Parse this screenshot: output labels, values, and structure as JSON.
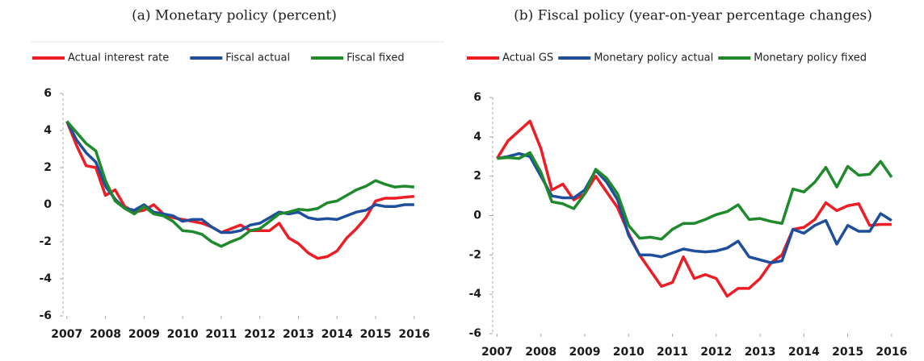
{
  "chart_data": [
    {
      "type": "line",
      "title": "(a) Monetary policy (percent)",
      "x": [
        2007,
        2007.25,
        2007.5,
        2007.75,
        2008,
        2008.25,
        2008.5,
        2008.75,
        2009,
        2009.25,
        2009.5,
        2009.75,
        2010,
        2010.25,
        2010.5,
        2010.75,
        2011,
        2011.25,
        2011.5,
        2011.75,
        2012,
        2012.25,
        2012.5,
        2012.75,
        2013,
        2013.25,
        2013.5,
        2013.75,
        2014,
        2014.25,
        2014.5,
        2014.75,
        2015,
        2015.25,
        2015.5,
        2015.75,
        2016
      ],
      "series": [
        {
          "name": "Actual interest rate",
          "color": "#ee1c25",
          "values": [
            4.5,
            3.2,
            2.1,
            2.0,
            0.5,
            0.8,
            -0.1,
            -0.4,
            -0.3,
            0.0,
            -0.5,
            -0.7,
            -0.8,
            -0.9,
            -1.0,
            -1.2,
            -1.5,
            -1.3,
            -1.1,
            -1.4,
            -1.4,
            -1.4,
            -1.0,
            -1.8,
            -2.1,
            -2.6,
            -2.9,
            -2.8,
            -2.5,
            -1.8,
            -1.3,
            -0.7,
            0.2,
            0.35,
            0.35,
            0.4,
            0.45
          ]
        },
        {
          "name": "Fiscal actual",
          "color": "#1f4e9c",
          "values": [
            4.5,
            3.5,
            2.8,
            2.3,
            1.0,
            0.3,
            -0.2,
            -0.3,
            0.0,
            -0.4,
            -0.5,
            -0.6,
            -0.9,
            -0.8,
            -0.8,
            -1.2,
            -1.5,
            -1.5,
            -1.4,
            -1.1,
            -1.0,
            -0.7,
            -0.4,
            -0.5,
            -0.4,
            -0.7,
            -0.8,
            -0.75,
            -0.8,
            -0.6,
            -0.4,
            -0.3,
            0.0,
            -0.1,
            -0.1,
            0.0,
            0.0
          ]
        },
        {
          "name": "Fiscal fixed",
          "color": "#1f8a2c",
          "values": [
            4.5,
            3.9,
            3.3,
            2.9,
            1.3,
            0.2,
            -0.2,
            -0.5,
            -0.1,
            -0.5,
            -0.6,
            -0.9,
            -1.4,
            -1.45,
            -1.6,
            -2.0,
            -2.25,
            -2.0,
            -1.8,
            -1.4,
            -1.3,
            -0.9,
            -0.5,
            -0.4,
            -0.25,
            -0.3,
            -0.2,
            0.1,
            0.2,
            0.5,
            0.8,
            1.0,
            1.3,
            1.1,
            0.95,
            1.0,
            0.95
          ]
        }
      ],
      "xlim": [
        2006.9,
        2016.15
      ],
      "xticks": [
        2007,
        2008,
        2009,
        2010,
        2011,
        2012,
        2013,
        2014,
        2015,
        2016
      ],
      "ylim": [
        -6,
        6
      ],
      "yticks": [
        -6,
        -4,
        -2,
        0,
        2,
        4,
        6
      ]
    },
    {
      "type": "line",
      "title": "(b) Fiscal policy (year-on-year percentage changes)",
      "x": [
        2007,
        2007.25,
        2007.5,
        2007.75,
        2008,
        2008.25,
        2008.5,
        2008.75,
        2009,
        2009.25,
        2009.5,
        2009.75,
        2010,
        2010.25,
        2010.5,
        2010.75,
        2011,
        2011.25,
        2011.5,
        2011.75,
        2012,
        2012.25,
        2012.5,
        2012.75,
        2013,
        2013.25,
        2013.5,
        2013.75,
        2014,
        2014.25,
        2014.5,
        2014.75,
        2015,
        2015.25,
        2015.5,
        2015.75,
        2016
      ],
      "series": [
        {
          "name": "Actual GS",
          "color": "#ee1c25",
          "values": [
            2.9,
            3.8,
            4.3,
            4.8,
            3.4,
            1.3,
            1.6,
            0.8,
            1.1,
            2.0,
            1.2,
            0.4,
            -0.9,
            -2.0,
            -2.8,
            -3.6,
            -3.4,
            -2.1,
            -3.2,
            -3.0,
            -3.2,
            -4.1,
            -3.7,
            -3.7,
            -3.2,
            -2.4,
            -2.0,
            -0.7,
            -0.6,
            -0.2,
            0.65,
            0.25,
            0.5,
            0.6,
            -0.5,
            -0.45,
            -0.45
          ]
        },
        {
          "name": "Monetary policy actual",
          "color": "#1f4e9c",
          "values": [
            2.9,
            3.0,
            3.15,
            3.0,
            2.0,
            1.0,
            0.9,
            0.9,
            1.3,
            2.3,
            1.7,
            0.8,
            -1.0,
            -2.0,
            -2.0,
            -2.1,
            -1.9,
            -1.7,
            -1.8,
            -1.85,
            -1.8,
            -1.65,
            -1.3,
            -2.1,
            -2.25,
            -2.4,
            -2.3,
            -0.7,
            -0.9,
            -0.5,
            -0.25,
            -1.45,
            -0.5,
            -0.8,
            -0.8,
            0.1,
            -0.25
          ]
        },
        {
          "name": "Monetary policy fixed",
          "color": "#1f8a2c",
          "values": [
            2.9,
            2.95,
            2.9,
            3.2,
            2.2,
            0.7,
            0.6,
            0.35,
            1.1,
            2.35,
            1.9,
            1.1,
            -0.5,
            -1.15,
            -1.1,
            -1.2,
            -0.7,
            -0.4,
            -0.4,
            -0.2,
            0.05,
            0.2,
            0.55,
            -0.2,
            -0.15,
            -0.3,
            -0.4,
            1.35,
            1.2,
            1.7,
            2.45,
            1.45,
            2.5,
            2.05,
            2.1,
            2.75,
            1.95
          ]
        }
      ],
      "xlim": [
        2006.9,
        2016.15
      ],
      "xticks": [
        2007,
        2008,
        2009,
        2010,
        2011,
        2012,
        2013,
        2014,
        2015,
        2016
      ],
      "ylim": [
        -6,
        6
      ],
      "yticks": [
        -6,
        -4,
        -2,
        0,
        2,
        4,
        6
      ]
    }
  ]
}
